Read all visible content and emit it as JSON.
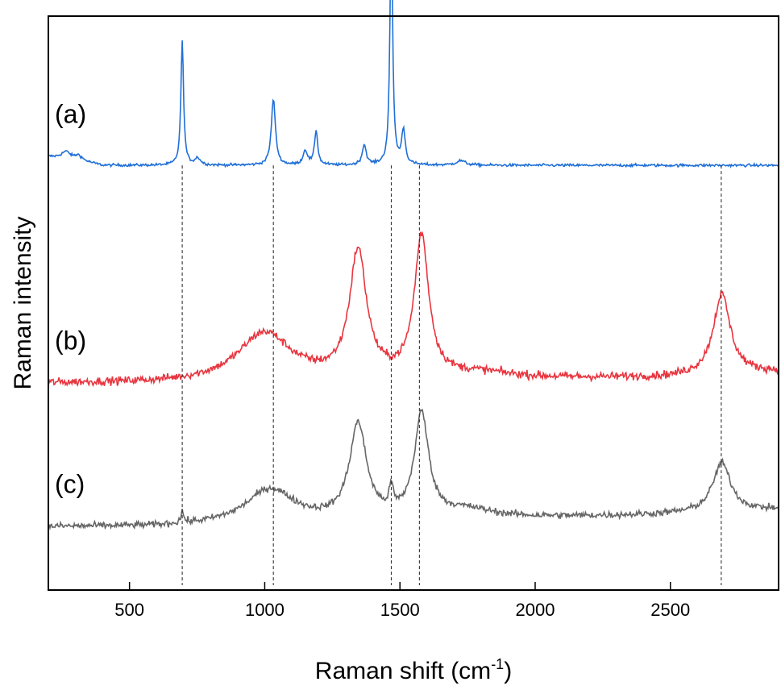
{
  "chart_data": {
    "type": "line",
    "xlabel": "Raman shift (cm",
    "xlabel_sup": "-1",
    "xlabel_close": ")",
    "ylabel": "Raman intensity",
    "xlim": [
      200,
      2900
    ],
    "ylim": [
      0,
      1
    ],
    "xticks": [
      500,
      1000,
      1500,
      2000,
      2500
    ],
    "yticks_shown": false,
    "grid": false,
    "legend": "none",
    "reference_lines_x": [
      695,
      1032,
      1468,
      1572,
      2688
    ],
    "series": [
      {
        "label": "(a)",
        "color": "#1f6fd6",
        "offset": 0.74,
        "noise": 0.004,
        "baseline": [
          [
            200,
            0.015
          ],
          [
            300,
            0.01
          ],
          [
            400,
            0.0
          ],
          [
            2900,
            0.0
          ]
        ],
        "peaks": [
          {
            "x": 265,
            "h": 0.012,
            "w": 20
          },
          {
            "x": 312,
            "h": 0.008,
            "w": 15
          },
          {
            "x": 695,
            "h": 0.215,
            "w": 6
          },
          {
            "x": 752,
            "h": 0.012,
            "w": 12
          },
          {
            "x": 1032,
            "h": 0.115,
            "w": 9
          },
          {
            "x": 1150,
            "h": 0.025,
            "w": 10
          },
          {
            "x": 1190,
            "h": 0.06,
            "w": 7
          },
          {
            "x": 1368,
            "h": 0.035,
            "w": 9
          },
          {
            "x": 1468,
            "h": 0.42,
            "w": 6
          },
          {
            "x": 1513,
            "h": 0.06,
            "w": 8
          },
          {
            "x": 1725,
            "h": 0.008,
            "w": 20
          }
        ]
      },
      {
        "label": "(b)",
        "color": "#e8353f",
        "offset": 0.36,
        "noise": 0.012,
        "baseline": [
          [
            200,
            0.0
          ],
          [
            600,
            0.0
          ],
          [
            2500,
            0.01
          ],
          [
            2900,
            0.02
          ]
        ],
        "peaks": [
          {
            "x": 1000,
            "h": 0.085,
            "w": 120
          },
          {
            "x": 1345,
            "h": 0.22,
            "w": 38
          },
          {
            "x": 1580,
            "h": 0.245,
            "w": 32
          },
          {
            "x": 1800,
            "h": 0.01,
            "w": 150
          },
          {
            "x": 2690,
            "h": 0.14,
            "w": 38
          }
        ]
      },
      {
        "label": "(c)",
        "color": "#666666",
        "offset": 0.11,
        "noise": 0.01,
        "baseline": [
          [
            200,
            0.0
          ],
          [
            600,
            0.0
          ],
          [
            2400,
            0.02
          ],
          [
            2900,
            0.03
          ]
        ],
        "peaks": [
          {
            "x": 695,
            "h": 0.02,
            "w": 6
          },
          {
            "x": 1020,
            "h": 0.06,
            "w": 110
          },
          {
            "x": 1345,
            "h": 0.165,
            "w": 38
          },
          {
            "x": 1468,
            "h": 0.04,
            "w": 8
          },
          {
            "x": 1580,
            "h": 0.18,
            "w": 32
          },
          {
            "x": 1750,
            "h": 0.015,
            "w": 120
          },
          {
            "x": 2690,
            "h": 0.085,
            "w": 40
          }
        ]
      }
    ]
  }
}
